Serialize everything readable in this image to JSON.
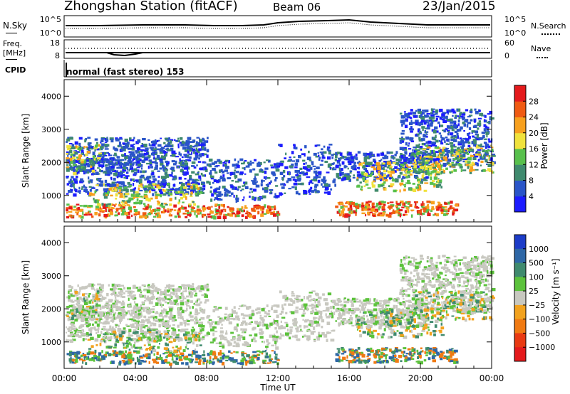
{
  "header": {
    "station_title": "Zhongshan Station (fitACF)",
    "beam": "Beam 06",
    "date": "23/Jan/2015"
  },
  "params_panel": {
    "nsky_label": "N.Sky",
    "nsearch_label": "N.Search",
    "freq_label": "Freq.",
    "freq_unit": "[MHz]",
    "nave_label": "Nave",
    "cpid_label": "CPID",
    "mode_text": "normal (fast stereo) 153",
    "noise_ticks": [
      "10^5",
      "10^0"
    ],
    "freq_ticks": [
      "18",
      "8"
    ],
    "nave_ticks": [
      "60",
      "0"
    ]
  },
  "chart_data": [
    {
      "type": "heatmap",
      "name": "power",
      "ylabel": "Slant Range [km]",
      "xlabel": "Time UT",
      "ylim": [
        200,
        4500
      ],
      "yticks": [
        "1000",
        "2000",
        "3000",
        "4000"
      ],
      "xticks": [
        "00:00",
        "04:00",
        "08:00",
        "12:00",
        "16:00",
        "20:00",
        "00:00"
      ],
      "colorbar": {
        "label": "Power [dB]",
        "ticks": [
          "4",
          "8",
          "12",
          "16",
          "20",
          "24",
          "28"
        ],
        "colors": [
          "#1c1cff",
          "#2a55c8",
          "#3f8a6e",
          "#58c04c",
          "#f0e23c",
          "#f7a01e",
          "#ef5a12",
          "#e41a1c"
        ]
      }
    },
    {
      "type": "heatmap",
      "name": "velocity",
      "ylabel": "Slant Range [km]",
      "xlabel": "Time UT",
      "ylim": [
        200,
        4500
      ],
      "yticks": [
        "1000",
        "2000",
        "3000",
        "4000"
      ],
      "xticks": [
        "00:00",
        "04:00",
        "08:00",
        "12:00",
        "16:00",
        "20:00",
        "00:00"
      ],
      "colorbar": {
        "label": "Velocity [m s⁻¹]",
        "ticks": [
          "1000",
          "500",
          "100",
          "25",
          "−25",
          "−100",
          "−500",
          "−1000"
        ],
        "colors": [
          "#1c3cc8",
          "#2e67a6",
          "#3f8a6e",
          "#5cc23c",
          "#c8c8c0",
          "#f2a21e",
          "#f07a12",
          "#e83a12",
          "#e41a1c"
        ]
      }
    }
  ]
}
